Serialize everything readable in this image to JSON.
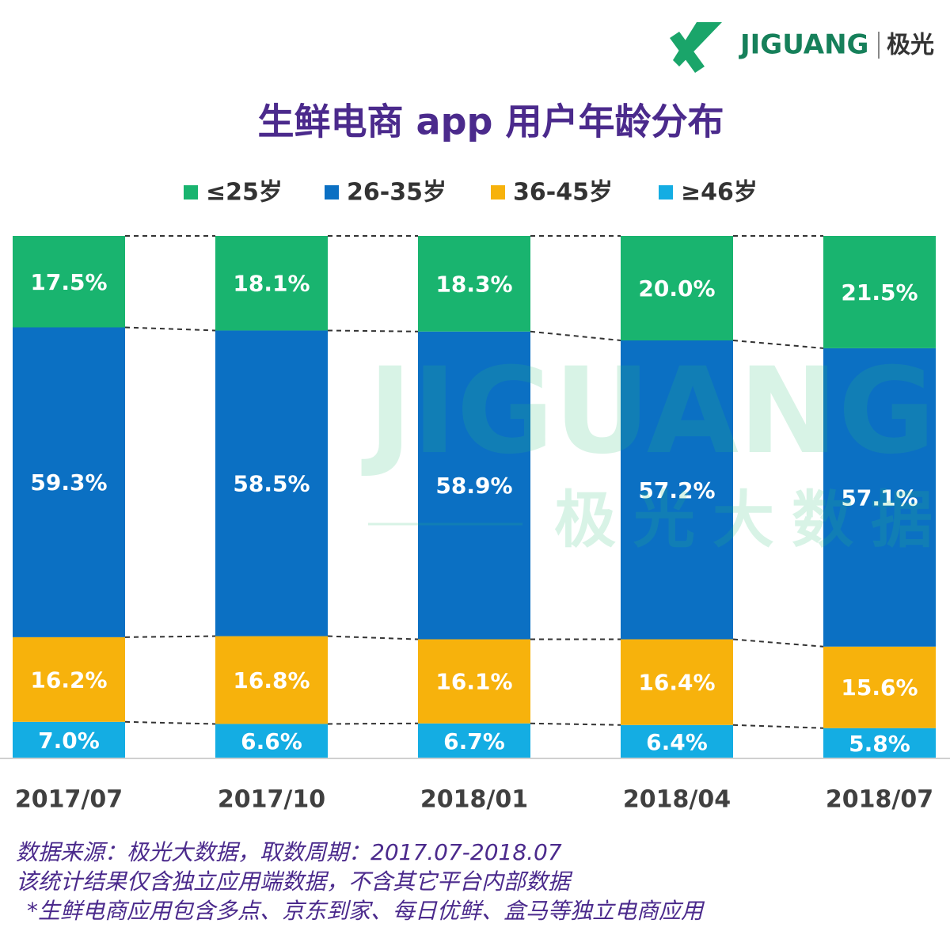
{
  "brand": {
    "name": "JIGUANG",
    "name_cn": "极光"
  },
  "watermark": {
    "name": "JIGUANG",
    "subtitle": "极光大数据"
  },
  "chart_data": {
    "type": "stacked_bar",
    "title": "生鲜电商 app 用户年龄分布",
    "categories": [
      "2017/07",
      "2017/10",
      "2018/01",
      "2018/04",
      "2018/07"
    ],
    "series": [
      {
        "name": "≤25岁",
        "color": "#19b46f",
        "values": [
          17.5,
          18.1,
          18.3,
          20.0,
          21.5
        ],
        "value_labels": [
          "17.5%",
          "18.1%",
          "18.3%",
          "20.0%",
          "21.5%"
        ]
      },
      {
        "name": "26-35岁",
        "color": "#0b70c3",
        "values": [
          59.3,
          58.5,
          58.9,
          57.2,
          57.1
        ],
        "value_labels": [
          "59.3%",
          "58.5%",
          "58.9%",
          "57.2%",
          "57.1%"
        ]
      },
      {
        "name": "36-45岁",
        "color": "#f7b20c",
        "values": [
          16.2,
          16.8,
          16.1,
          16.4,
          15.6
        ],
        "value_labels": [
          "16.2%",
          "16.8%",
          "16.1%",
          "16.4%",
          "15.6%"
        ]
      },
      {
        "name": "≥46岁",
        "color": "#14ade3",
        "values": [
          7.0,
          6.6,
          6.7,
          6.4,
          5.8
        ],
        "value_labels": [
          "7.0%",
          "6.6%",
          "6.7%",
          "6.4%",
          "5.8%"
        ]
      }
    ],
    "ylim": [
      0,
      100
    ],
    "notes": [
      "数据来源：极光大数据，取数周期：2017.07-2018.07",
      "该统计结果仅含独立应用端数据，不含其它平台内部数据",
      "*生鲜电商应用包含多点、京东到家、每日优鲜、盒马等独立电商应用"
    ]
  }
}
